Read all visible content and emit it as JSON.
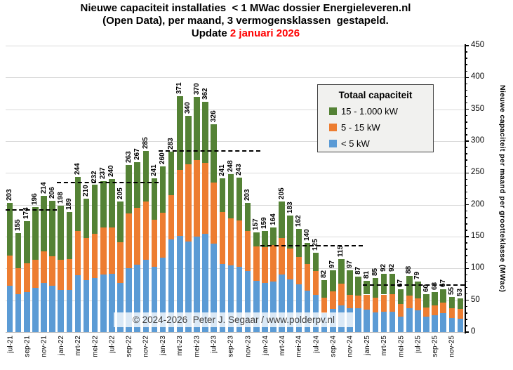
{
  "title": {
    "line1": "Nieuwe capaciteit installaties  < 1 MWac dossier Energieleveren.nl",
    "line2": "(Open Data), per maand, 3 vermogensklassen  gestapeld.",
    "update_prefix": "Update ",
    "update_date": "2 januari 2026",
    "update_date_color": "#ff0000"
  },
  "watermark": "© 2024-2026  Peter J. Segaar / www.polderpv.nl",
  "legend": {
    "title": "Totaal capaciteit",
    "items": [
      {
        "label": "15 - 1.000 kW",
        "color": "#548235"
      },
      {
        "label": "5 - 15 kW",
        "color": "#ed7d31"
      },
      {
        "label": "< 5 kW",
        "color": "#5b9bd5"
      }
    ]
  },
  "y_axis": {
    "title": "Nieuwe capaciteit per maand per grootteklasse (MWac)",
    "min": 0,
    "max": 450,
    "step": 50,
    "minor_step": 10
  },
  "chart_data": {
    "type": "bar",
    "stacked": true,
    "grid": true,
    "legend_position": "inside-right",
    "x_tick_every": 2,
    "categories": [
      "jul-21",
      "aug-21",
      "sep-21",
      "okt-21",
      "nov-21",
      "dec-21",
      "jan-22",
      "feb-22",
      "mrt-22",
      "apr-22",
      "mei-22",
      "jun-22",
      "jul-22",
      "aug-22",
      "sep-22",
      "okt-22",
      "nov-22",
      "dec-22",
      "jan-23",
      "feb-23",
      "mrt-23",
      "apr-23",
      "mei-23",
      "jun-23",
      "jul-23",
      "aug-23",
      "sep-23",
      "okt-23",
      "nov-23",
      "dec-23",
      "jan-24",
      "feb-24",
      "mrt-24",
      "apr-24",
      "mei-24",
      "jun-24",
      "jul-24",
      "aug-24",
      "sep-24",
      "okt-24",
      "nov-24",
      "dec-24",
      "jan-25",
      "feb-25",
      "mrt-25",
      "apr-25",
      "mei-25",
      "jun-25",
      "jul-25",
      "aug-25",
      "sep-25",
      "okt-25",
      "nov-25",
      "dec-25"
    ],
    "totals": [
      203,
      155,
      174,
      196,
      214,
      206,
      198,
      189,
      244,
      210,
      232,
      237,
      240,
      205,
      263,
      267,
      285,
      241,
      260,
      283,
      371,
      340,
      370,
      362,
      326,
      241,
      248,
      243,
      203,
      157,
      159,
      164,
      205,
      183,
      162,
      140,
      125,
      82,
      97,
      115,
      97,
      87,
      81,
      85,
      92,
      92,
      67,
      88,
      79,
      60,
      63,
      67,
      55,
      53
    ],
    "series": [
      {
        "name": "< 5 kW",
        "color": "#5b9bd5",
        "values": [
          73,
          60,
          63,
          70,
          77,
          73,
          66,
          66,
          89,
          82,
          85,
          90,
          91,
          77,
          100,
          106,
          114,
          103,
          117,
          146,
          151,
          142,
          150,
          154,
          139,
          107,
          105,
          103,
          96,
          81,
          77,
          79,
          90,
          83,
          75,
          65,
          58,
          30,
          36,
          42,
          37,
          37,
          35,
          31,
          32,
          32,
          24,
          37,
          34,
          24,
          26,
          30,
          22,
          21
        ]
      },
      {
        "name": "5 - 15 kW",
        "color": "#ed7d31",
        "values": [
          47,
          40,
          45,
          44,
          50,
          46,
          48,
          49,
          70,
          66,
          69,
          74,
          73,
          64,
          86,
          89,
          91,
          73,
          70,
          69,
          104,
          122,
          120,
          112,
          96,
          82,
          74,
          72,
          63,
          54,
          56,
          58,
          58,
          48,
          43,
          42,
          38,
          24,
          28,
          34,
          22,
          20,
          24,
          23,
          27,
          28,
          20,
          20,
          19,
          15,
          16,
          16,
          15,
          15
        ]
      },
      {
        "name": "15 - 1.000 kW",
        "color": "#548235",
        "values": [
          83,
          55,
          66,
          82,
          87,
          87,
          84,
          74,
          85,
          62,
          78,
          73,
          76,
          64,
          77,
          72,
          80,
          65,
          73,
          68,
          116,
          76,
          100,
          96,
          91,
          52,
          69,
          68,
          44,
          22,
          26,
          27,
          57,
          52,
          44,
          33,
          29,
          28,
          33,
          39,
          38,
          30,
          22,
          31,
          33,
          32,
          23,
          31,
          26,
          21,
          21,
          21,
          18,
          17
        ]
      }
    ],
    "year_averages": [
      {
        "year": 2021,
        "value": 191,
        "start": 0,
        "end": 5
      },
      {
        "year": 2022,
        "value": 234,
        "start": 6,
        "end": 17
      },
      {
        "year": 2023,
        "value": 284,
        "start": 18,
        "end": 29
      },
      {
        "year": 2024,
        "value": 135,
        "start": 30,
        "end": 41
      },
      {
        "year": 2025,
        "value": 73,
        "start": 42,
        "end": 53
      }
    ]
  }
}
